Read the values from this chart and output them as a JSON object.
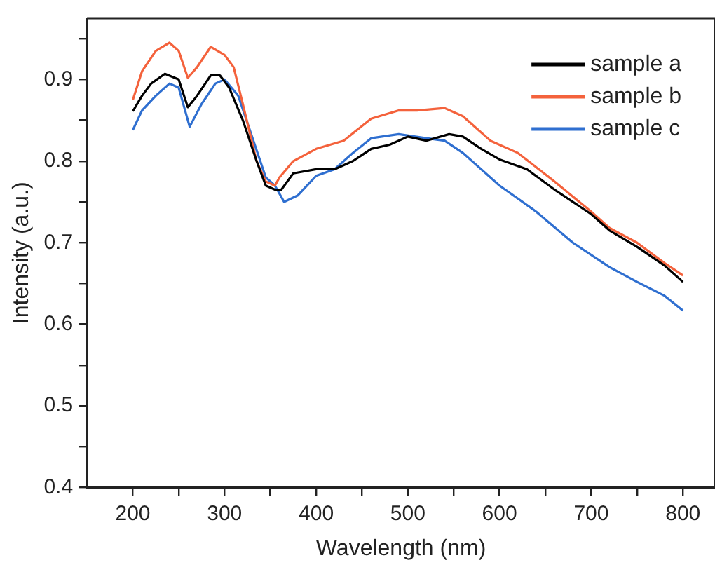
{
  "chart_data": {
    "type": "line",
    "xlabel": "Wavelength (nm)",
    "ylabel": "Intensity (a.u.)",
    "xlim": [
      150,
      835
    ],
    "ylim": [
      0.4,
      0.975
    ],
    "xticks": [
      200,
      {
        "value": 250,
        "label": null
      },
      300,
      {
        "value": 350,
        "label": null
      },
      400,
      {
        "value": 450,
        "label": null
      },
      500,
      {
        "value": 550,
        "label": null
      },
      600,
      {
        "value": 650,
        "label": null
      },
      700,
      {
        "value": 750,
        "label": null
      },
      800
    ],
    "yticks": [
      {
        "value": 0.4,
        "label": "0.4"
      },
      {
        "value": 0.45,
        "label": null
      },
      {
        "value": 0.5,
        "label": "0.5"
      },
      {
        "value": 0.55,
        "label": null
      },
      {
        "value": 0.6,
        "label": "0.6"
      },
      {
        "value": 0.65,
        "label": null
      },
      {
        "value": 0.7,
        "label": "0.7"
      },
      {
        "value": 0.75,
        "label": null
      },
      {
        "value": 0.8,
        "label": "0.8"
      },
      {
        "value": 0.85,
        "label": null
      },
      {
        "value": 0.9,
        "label": "0.9"
      },
      {
        "value": 0.95,
        "label": null
      }
    ],
    "grid": false,
    "legend": "top right",
    "marker": "none",
    "line_style": "solid",
    "series": [
      {
        "name": "sample a",
        "color": "#000000",
        "x": [
          200,
          210,
          220,
          235,
          250,
          260,
          270,
          285,
          295,
          305,
          320,
          335,
          345,
          355,
          362,
          375,
          400,
          420,
          440,
          460,
          480,
          500,
          520,
          545,
          560,
          580,
          600,
          630,
          660,
          700,
          720,
          750,
          780,
          800
        ],
        "values": [
          0.861,
          0.88,
          0.895,
          0.907,
          0.9,
          0.866,
          0.88,
          0.905,
          0.905,
          0.89,
          0.85,
          0.8,
          0.77,
          0.765,
          0.765,
          0.785,
          0.79,
          0.79,
          0.8,
          0.815,
          0.82,
          0.83,
          0.825,
          0.833,
          0.83,
          0.815,
          0.802,
          0.79,
          0.765,
          0.735,
          0.715,
          0.695,
          0.672,
          0.652
        ]
      },
      {
        "name": "sample b",
        "color": "#f4623c",
        "x": [
          200,
          210,
          225,
          240,
          250,
          260,
          270,
          285,
          300,
          310,
          320,
          335,
          345,
          355,
          360,
          375,
          400,
          430,
          460,
          490,
          510,
          540,
          560,
          590,
          620,
          660,
          700,
          720,
          750,
          780,
          800
        ],
        "values": [
          0.875,
          0.91,
          0.935,
          0.945,
          0.935,
          0.902,
          0.915,
          0.94,
          0.93,
          0.915,
          0.87,
          0.8,
          0.775,
          0.77,
          0.78,
          0.8,
          0.815,
          0.825,
          0.852,
          0.862,
          0.862,
          0.865,
          0.855,
          0.825,
          0.81,
          0.775,
          0.738,
          0.718,
          0.7,
          0.675,
          0.66
        ]
      },
      {
        "name": "sample c",
        "color": "#2f6fd0",
        "x": [
          200,
          210,
          225,
          240,
          250,
          262,
          275,
          290,
          300,
          315,
          330,
          345,
          355,
          365,
          380,
          400,
          420,
          440,
          460,
          490,
          520,
          540,
          560,
          600,
          640,
          680,
          720,
          750,
          780,
          800
        ],
        "values": [
          0.838,
          0.862,
          0.88,
          0.895,
          0.89,
          0.842,
          0.87,
          0.895,
          0.9,
          0.88,
          0.83,
          0.78,
          0.77,
          0.75,
          0.758,
          0.782,
          0.79,
          0.81,
          0.828,
          0.833,
          0.828,
          0.825,
          0.81,
          0.77,
          0.738,
          0.7,
          0.67,
          0.652,
          0.635,
          0.617
        ]
      }
    ]
  }
}
